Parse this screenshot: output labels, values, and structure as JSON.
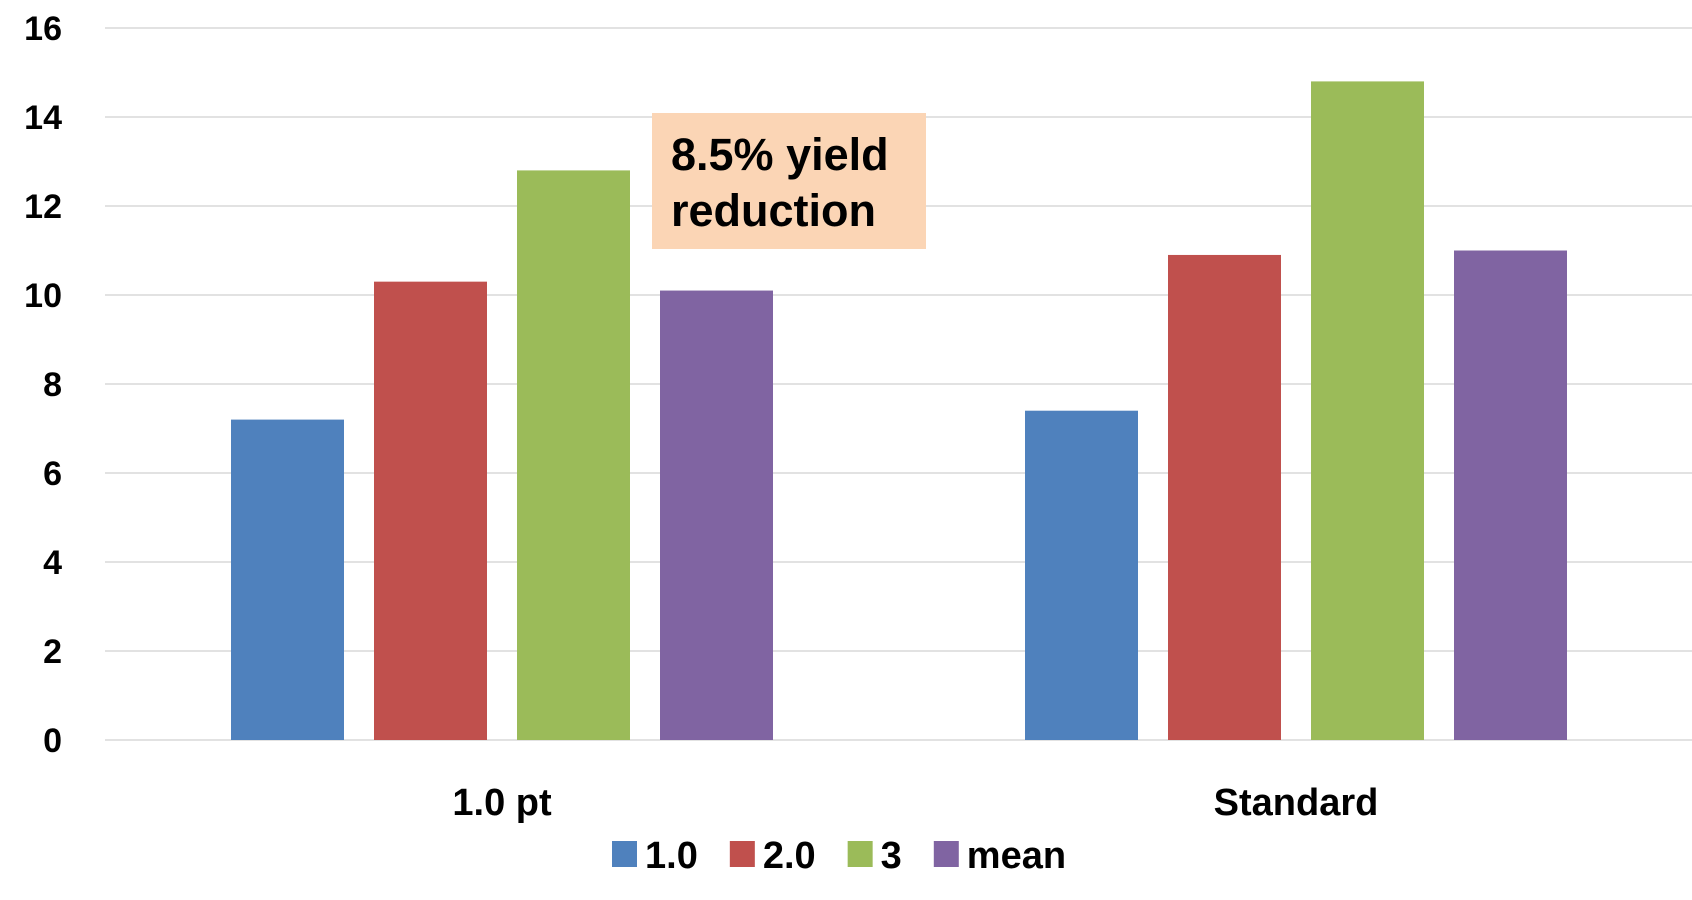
{
  "chart_data": {
    "type": "bar",
    "title": "",
    "xlabel": "",
    "ylabel": "",
    "ylim": [
      0,
      16
    ],
    "y_ticks": [
      "0",
      "2",
      "4",
      "6",
      "8",
      "10",
      "12",
      "14",
      "16"
    ],
    "grid": true,
    "legend_position": "bottom",
    "categories": [
      "1.0 pt",
      "Standard"
    ],
    "series": [
      {
        "name": "1.0",
        "color": "#4F81BD",
        "values": [
          7.2,
          7.4
        ]
      },
      {
        "name": "2.0",
        "color": "#C0504D",
        "values": [
          10.3,
          10.9
        ]
      },
      {
        "name": "3",
        "color": "#9BBB59",
        "values": [
          12.8,
          14.8
        ]
      },
      {
        "name": "mean",
        "color": "#8064A2",
        "values": [
          10.1,
          11.0
        ]
      }
    ],
    "annotation": {
      "lines": [
        "8.5% yield",
        "reduction"
      ],
      "color": "#FBD5B5"
    }
  }
}
